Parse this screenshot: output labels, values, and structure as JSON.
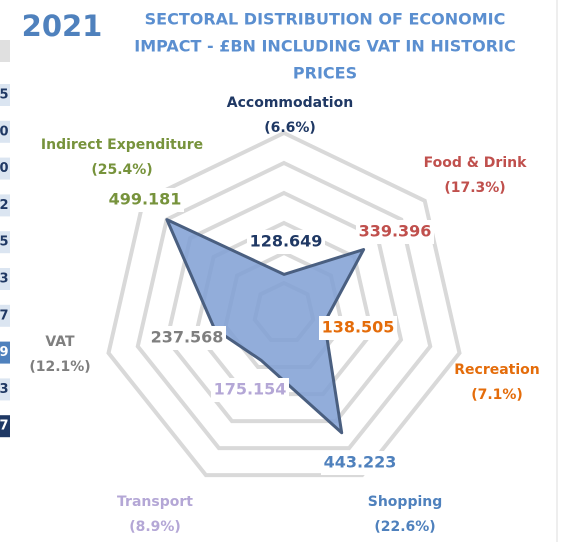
{
  "chart_data": {
    "type": "radar",
    "year": "2021",
    "title": [
      "SECTORAL DISTRIBUTION  OF ECONOMIC",
      "IMPACT - £BN INCLUDING VAT IN HISTORIC",
      "PRICES"
    ],
    "categories": [
      "Accommodation",
      "Food & Drink",
      "Recreation",
      "Shopping",
      "Transport",
      "VAT",
      "Indirect Expenditure"
    ],
    "share_labels": [
      "(6.6%)",
      "(17.3%)",
      "(7.1%)",
      "(22.6%)",
      "(8.9%)",
      "(12.1%)",
      "(25.4%)"
    ],
    "category_colors": [
      "#1f3864",
      "#c0504d",
      "#e46c0a",
      "#4f81bd",
      "#b4a7d6",
      "#7f7f7f",
      "#77933c"
    ],
    "values": [
      128.649,
      339.396,
      138.505,
      443.223,
      175.154,
      237.568,
      499.181
    ],
    "color": "#7f9fd4",
    "rlim": [
      0,
      600
    ],
    "rticks": [
      100,
      200,
      300,
      400,
      500,
      600
    ],
    "grid": true,
    "edge_fragments": [
      "5",
      "0",
      "0",
      "2",
      "5",
      "3",
      "7",
      "9",
      "3",
      "7"
    ]
  }
}
